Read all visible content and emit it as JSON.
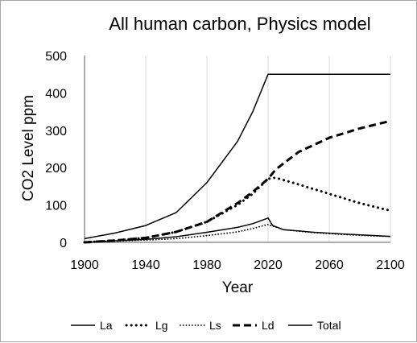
{
  "chart_data": {
    "type": "line",
    "title": "All human carbon, Physics model",
    "xlabel": "Year",
    "ylabel": "CO2 Level ppm",
    "xlim": [
      1900,
      2100
    ],
    "ylim": [
      0,
      500
    ],
    "xticks": [
      1900,
      1940,
      1980,
      2020,
      2060,
      2100
    ],
    "yticks": [
      0,
      100,
      200,
      300,
      400,
      500
    ],
    "grid": "vertical gridlines",
    "legend_position": "bottom",
    "series": [
      {
        "name": "La",
        "style": "solid",
        "x": [
          1900,
          1920,
          1940,
          1960,
          1980,
          2000,
          2010,
          2020,
          2023,
          2030,
          2050,
          2070,
          2090,
          2100
        ],
        "y": [
          0,
          4,
          8,
          15,
          27,
          40,
          50,
          65,
          45,
          34,
          27,
          22,
          18,
          16
        ]
      },
      {
        "name": "Lg",
        "style": "dotted-heavy",
        "x": [
          1900,
          1920,
          1940,
          1960,
          1980,
          2000,
          2010,
          2020,
          2025,
          2040,
          2060,
          2080,
          2100
        ],
        "y": [
          0,
          5,
          12,
          28,
          55,
          100,
          130,
          170,
          173,
          155,
          130,
          105,
          85
        ]
      },
      {
        "name": "Ls",
        "style": "dotted-light",
        "x": [
          1900,
          1920,
          1940,
          1960,
          1980,
          2000,
          2010,
          2020,
          2022,
          2030,
          2050,
          2070,
          2090,
          2100
        ],
        "y": [
          0,
          3,
          6,
          10,
          18,
          28,
          37,
          48,
          45,
          34,
          26,
          21,
          17,
          16
        ]
      },
      {
        "name": "Ld",
        "style": "dashed",
        "x": [
          1900,
          1920,
          1940,
          1960,
          1980,
          2000,
          2010,
          2020,
          2025,
          2040,
          2060,
          2080,
          2100
        ],
        "y": [
          0,
          5,
          12,
          28,
          55,
          105,
          135,
          170,
          195,
          242,
          280,
          305,
          325
        ]
      },
      {
        "name": "Total",
        "style": "solid",
        "x": [
          1900,
          1920,
          1940,
          1960,
          1980,
          2000,
          2010,
          2020,
          2100
        ],
        "y": [
          10,
          25,
          45,
          80,
          160,
          270,
          350,
          450,
          450
        ]
      }
    ]
  },
  "colors": {
    "line": "#000000",
    "grid": "#d9d9d9",
    "axis": "#595959",
    "border": "#a6a6a6"
  }
}
